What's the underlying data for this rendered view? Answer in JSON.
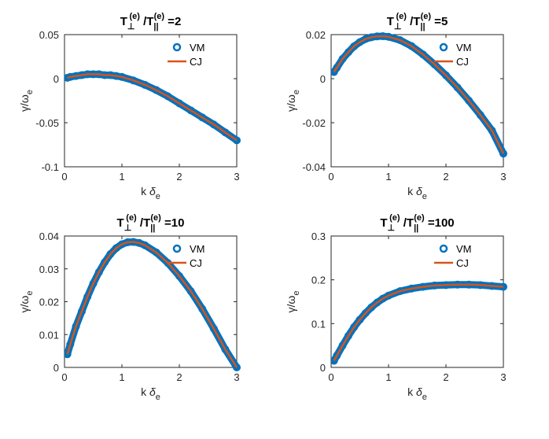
{
  "chart_data": [
    {
      "type": "line",
      "title": "T⊥(e) /T∥(e) =2",
      "title_parts": {
        "t1": "T",
        "sub1": "⊥",
        "sup1": "(e)",
        "t2": " /T",
        "sub2": "||",
        "sup2": "(e)",
        "tail": " =2"
      },
      "xlabel": "k δ e",
      "ylabel": "γ/ω e",
      "xlim": [
        0,
        3
      ],
      "ylim": [
        -0.1,
        0.05
      ],
      "xticks": [
        "0",
        "1",
        "2",
        "3"
      ],
      "xtick_values": [
        0,
        1,
        2,
        3
      ],
      "yticks": [
        "-0.1",
        "-0.05",
        "0",
        "0.05"
      ],
      "ytick_values": [
        -0.1,
        -0.05,
        0,
        0.05
      ],
      "legend_position": "top-right",
      "series": [
        {
          "name": "VM",
          "style": "markers",
          "color": "#0072BD",
          "x": [
            0.05,
            0.1,
            0.2,
            0.3,
            0.4,
            0.5,
            0.6,
            0.7,
            0.8,
            0.9,
            1.0,
            1.2,
            1.4,
            1.6,
            1.8,
            2.0,
            2.2,
            2.4,
            2.6,
            2.8,
            3.0
          ],
          "y": [
            0.001,
            0.002,
            0.003,
            0.004,
            0.005,
            0.005,
            0.005,
            0.004,
            0.004,
            0.003,
            0.002,
            -0.002,
            -0.007,
            -0.013,
            -0.02,
            -0.028,
            -0.036,
            -0.044,
            -0.052,
            -0.061,
            -0.07
          ]
        },
        {
          "name": "CJ",
          "style": "line",
          "color": "#D95319",
          "x": [
            0.05,
            0.1,
            0.2,
            0.3,
            0.4,
            0.5,
            0.6,
            0.7,
            0.8,
            0.9,
            1.0,
            1.2,
            1.4,
            1.6,
            1.8,
            2.0,
            2.2,
            2.4,
            2.6,
            2.8,
            3.0
          ],
          "y": [
            0.001,
            0.002,
            0.003,
            0.004,
            0.005,
            0.005,
            0.005,
            0.004,
            0.004,
            0.003,
            0.002,
            -0.002,
            -0.007,
            -0.013,
            -0.02,
            -0.028,
            -0.036,
            -0.044,
            -0.052,
            -0.061,
            -0.07
          ]
        }
      ]
    },
    {
      "type": "line",
      "title": "T⊥(e) /T∥(e) =5",
      "title_parts": {
        "t1": "T",
        "sub1": "⊥",
        "sup1": "(e)",
        "t2": " /T",
        "sub2": "||",
        "sup2": "(e)",
        "tail": " =5"
      },
      "xlabel": "k δ e",
      "ylabel": "γ/ω e",
      "xlim": [
        0,
        3
      ],
      "ylim": [
        -0.04,
        0.02
      ],
      "xticks": [
        "0",
        "1",
        "2",
        "3"
      ],
      "xtick_values": [
        0,
        1,
        2,
        3
      ],
      "yticks": [
        "-0.04",
        "-0.02",
        "0",
        "0.02"
      ],
      "ytick_values": [
        -0.04,
        -0.02,
        0,
        0.02
      ],
      "legend_position": "top-right",
      "series": [
        {
          "name": "VM",
          "style": "markers",
          "color": "#0072BD",
          "x": [
            0.05,
            0.1,
            0.2,
            0.3,
            0.4,
            0.5,
            0.6,
            0.7,
            0.8,
            0.9,
            1.0,
            1.2,
            1.4,
            1.6,
            1.8,
            2.0,
            2.2,
            2.4,
            2.6,
            2.8,
            3.0
          ],
          "y": [
            0.003,
            0.005,
            0.009,
            0.012,
            0.0147,
            0.0166,
            0.018,
            0.0188,
            0.0192,
            0.0193,
            0.019,
            0.0175,
            0.0148,
            0.011,
            0.0065,
            0.0015,
            -0.004,
            -0.01,
            -0.0165,
            -0.0235,
            -0.034
          ]
        },
        {
          "name": "CJ",
          "style": "line",
          "color": "#D95319",
          "x": [
            0.05,
            0.1,
            0.2,
            0.3,
            0.4,
            0.5,
            0.6,
            0.7,
            0.8,
            0.9,
            1.0,
            1.2,
            1.4,
            1.6,
            1.8,
            2.0,
            2.2,
            2.4,
            2.6,
            2.8,
            3.0
          ],
          "y": [
            0.003,
            0.005,
            0.009,
            0.012,
            0.0147,
            0.0166,
            0.018,
            0.0188,
            0.0192,
            0.0193,
            0.019,
            0.0175,
            0.0148,
            0.011,
            0.0065,
            0.0015,
            -0.004,
            -0.01,
            -0.0165,
            -0.0235,
            -0.034
          ]
        }
      ]
    },
    {
      "type": "line",
      "title": "T⊥(e) /T∥(e) =10",
      "title_parts": {
        "t1": "T",
        "sub1": "⊥",
        "sup1": "(e)",
        "t2": " /T",
        "sub2": "||",
        "sup2": "(e)",
        "tail": " =10"
      },
      "xlabel": "k δ e",
      "ylabel": "γ/ω e",
      "xlim": [
        0,
        3
      ],
      "ylim": [
        0,
        0.04
      ],
      "xticks": [
        "0",
        "1",
        "2",
        "3"
      ],
      "xtick_values": [
        0,
        1,
        2,
        3
      ],
      "yticks": [
        "0",
        "0.01",
        "0.02",
        "0.03",
        "0.04"
      ],
      "ytick_values": [
        0,
        0.01,
        0.02,
        0.03,
        0.04
      ],
      "legend_position": "top-right",
      "series": [
        {
          "name": "VM",
          "style": "markers",
          "color": "#0072BD",
          "x": [
            0.05,
            0.1,
            0.2,
            0.3,
            0.4,
            0.5,
            0.6,
            0.7,
            0.8,
            0.9,
            1.0,
            1.1,
            1.2,
            1.3,
            1.4,
            1.6,
            1.8,
            2.0,
            2.2,
            2.4,
            2.6,
            2.8,
            3.0
          ],
          "y": [
            0.004,
            0.007,
            0.0125,
            0.017,
            0.0215,
            0.0255,
            0.029,
            0.032,
            0.0345,
            0.0363,
            0.0375,
            0.0381,
            0.0382,
            0.0379,
            0.0372,
            0.035,
            0.0318,
            0.0278,
            0.0232,
            0.0178,
            0.0118,
            0.0055,
            0.0
          ]
        },
        {
          "name": "CJ",
          "style": "line",
          "color": "#D95319",
          "x": [
            0.05,
            0.1,
            0.2,
            0.3,
            0.4,
            0.5,
            0.6,
            0.7,
            0.8,
            0.9,
            1.0,
            1.1,
            1.2,
            1.3,
            1.4,
            1.6,
            1.8,
            2.0,
            2.2,
            2.4,
            2.6,
            2.8,
            3.0
          ],
          "y": [
            0.004,
            0.007,
            0.0125,
            0.017,
            0.0215,
            0.0255,
            0.029,
            0.032,
            0.0345,
            0.0363,
            0.0375,
            0.0381,
            0.0382,
            0.0379,
            0.0372,
            0.035,
            0.0318,
            0.0278,
            0.0232,
            0.0178,
            0.0118,
            0.0055,
            0.0
          ]
        }
      ]
    },
    {
      "type": "line",
      "title": "T⊥(e) /T∥(e) =100",
      "title_parts": {
        "t1": "T",
        "sub1": "⊥",
        "sup1": "(e)",
        "t2": " /T",
        "sub2": "||",
        "sup2": "(e)",
        "tail": " =100"
      },
      "xlabel": "k δ e",
      "ylabel": "γ/ω e",
      "xlim": [
        0,
        3
      ],
      "ylim": [
        0,
        0.3
      ],
      "xticks": [
        "0",
        "1",
        "2",
        "3"
      ],
      "xtick_values": [
        0,
        1,
        2,
        3
      ],
      "yticks": [
        "0",
        "0.1",
        "0.2",
        "0.3"
      ],
      "ytick_values": [
        0,
        0.1,
        0.2,
        0.3
      ],
      "legend_position": "top-right",
      "series": [
        {
          "name": "VM",
          "style": "markers",
          "color": "#0072BD",
          "x": [
            0.05,
            0.1,
            0.2,
            0.3,
            0.4,
            0.5,
            0.6,
            0.7,
            0.8,
            0.9,
            1.0,
            1.2,
            1.4,
            1.6,
            1.8,
            2.0,
            2.2,
            2.4,
            2.6,
            2.8,
            3.0
          ],
          "y": [
            0.015,
            0.027,
            0.05,
            0.072,
            0.092,
            0.109,
            0.124,
            0.137,
            0.148,
            0.157,
            0.164,
            0.174,
            0.18,
            0.184,
            0.187,
            0.188,
            0.189,
            0.189,
            0.188,
            0.186,
            0.184
          ]
        },
        {
          "name": "CJ",
          "style": "line",
          "color": "#D95319",
          "x": [
            0.05,
            0.1,
            0.2,
            0.3,
            0.4,
            0.5,
            0.6,
            0.7,
            0.8,
            0.9,
            1.0,
            1.2,
            1.4,
            1.6,
            1.8,
            2.0,
            2.2,
            2.4,
            2.6,
            2.8,
            3.0
          ],
          "y": [
            0.015,
            0.027,
            0.05,
            0.072,
            0.092,
            0.109,
            0.124,
            0.137,
            0.148,
            0.157,
            0.164,
            0.174,
            0.18,
            0.184,
            0.187,
            0.188,
            0.189,
            0.189,
            0.188,
            0.186,
            0.184
          ]
        }
      ]
    }
  ],
  "axis_label_parts": {
    "x_main": "k",
    "x_sym": "δ",
    "x_sub": "e",
    "y_main": "γ/ω",
    "y_sub": "e"
  }
}
